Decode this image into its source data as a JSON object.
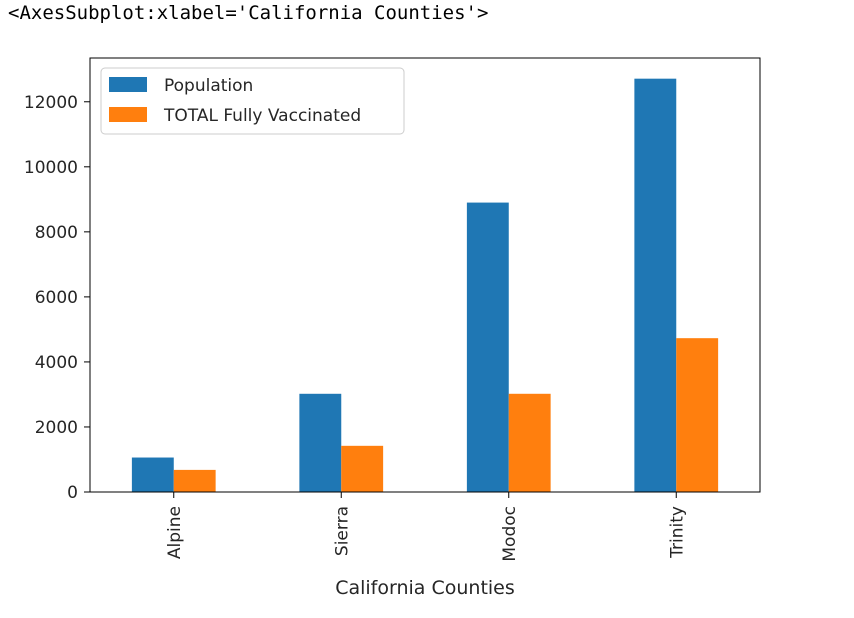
{
  "output_repr": "<AxesSubplot:xlabel='California Counties'>",
  "chart_data": {
    "type": "bar",
    "xlabel": "California Counties",
    "ylabel": "",
    "categories": [
      "Alpine",
      "Sierra",
      "Modoc",
      "Trinity"
    ],
    "series": [
      {
        "name": "Population",
        "color": "#1f77b4",
        "values": [
          1060,
          3020,
          8900,
          12710
        ]
      },
      {
        "name": "TOTAL Fully Vaccinated",
        "color": "#ff7f0e",
        "values": [
          680,
          1420,
          3020,
          4730
        ]
      }
    ],
    "yticks": [
      0,
      2000,
      4000,
      6000,
      8000,
      10000,
      12000
    ],
    "ylim": [
      0,
      13346
    ],
    "grid": false,
    "legend_position": "upper left"
  }
}
